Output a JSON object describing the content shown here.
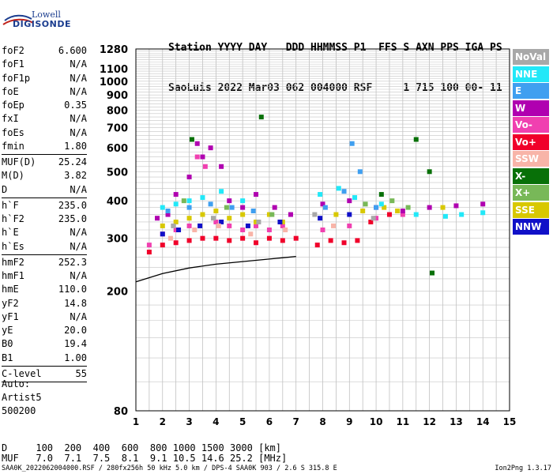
{
  "logo": {
    "line1": "Lowell",
    "line2": "DIGISONDE"
  },
  "header": {
    "line1": "Station YYYY DAY   DDD HHMMSS P1  FFS S AXN PPS IGA PS",
    "line2": "SaoLuis 2022 Mar03 062 004000 RSF     1 715 100 00- 11"
  },
  "parameters": [
    {
      "name": "foF2",
      "value": "6.600"
    },
    {
      "name": "foF1",
      "value": "N/A"
    },
    {
      "name": "foF1p",
      "value": "N/A"
    },
    {
      "name": "foE",
      "value": "N/A"
    },
    {
      "name": "foEp",
      "value": "0.35"
    },
    {
      "name": "fxI",
      "value": "N/A"
    },
    {
      "name": "foEs",
      "value": "N/A"
    },
    {
      "name": "fmin",
      "value": "1.80",
      "sep_after": true
    },
    {
      "name": "MUF(D)",
      "value": "25.24"
    },
    {
      "name": "M(D)",
      "value": "3.82"
    },
    {
      "name": "D",
      "value": "N/A",
      "sep_after": true
    },
    {
      "name": "h`F",
      "value": "235.0"
    },
    {
      "name": "h`F2",
      "value": "235.0"
    },
    {
      "name": "h`E",
      "value": "N/A"
    },
    {
      "name": "h`Es",
      "value": "N/A",
      "sep_after": true
    },
    {
      "name": "hmF2",
      "value": "252.3"
    },
    {
      "name": "hmF1",
      "value": "N/A"
    },
    {
      "name": "hmE",
      "value": "110.0"
    },
    {
      "name": "yF2",
      "value": "14.8"
    },
    {
      "name": "yF1",
      "value": "N/A"
    },
    {
      "name": "yE",
      "value": "20.0"
    },
    {
      "name": "B0",
      "value": "19.4"
    },
    {
      "name": "B1",
      "value": "1.00",
      "sep_after": true
    },
    {
      "name": "C-level",
      "value": "55",
      "sep_after": true
    }
  ],
  "notes": [
    "Auto:",
    "Artist5",
    "500200"
  ],
  "muf_table": {
    "d_row": "D     100  200  400  600  800 1000 1500 3000 [km]",
    "muf_row": "MUF   7.0  7.1  7.5  8.1  9.1 10.5 14.6 25.2 [MHz]"
  },
  "footer": {
    "left": "SAA0K_2022062004000.RSF / 280fx256h 50 kHz 5.0 km / DPS-4 SAA0K 903 / 2.6 S 315.8 E",
    "right": "Ion2Png 1.3.17"
  },
  "legend": [
    {
      "label": "NoVal",
      "color": "#a8a8a8"
    },
    {
      "label": "NNE",
      "color": "#22e8f8"
    },
    {
      "label": "E",
      "color": "#3f9ff0"
    },
    {
      "label": "W",
      "color": "#b000b0"
    },
    {
      "label": "Vo-",
      "color": "#f040b0"
    },
    {
      "label": "Vo+",
      "color": "#f0002a"
    },
    {
      "label": "SSW",
      "color": "#f8b4a8"
    },
    {
      "label": "X-",
      "color": "#087008"
    },
    {
      "label": "X+",
      "color": "#78b858"
    },
    {
      "label": "SSE",
      "color": "#d8c800"
    },
    {
      "label": "NNW",
      "color": "#1010c8"
    }
  ],
  "chart_data": {
    "type": "scatter",
    "title": "",
    "xlabel": "",
    "ylabel": "",
    "x_unit": "MHz",
    "y_unit": "km",
    "xlim": [
      1,
      15
    ],
    "ylim": [
      80,
      1280
    ],
    "y_scale": "log",
    "x_ticks": [
      1,
      2,
      3,
      4,
      5,
      6,
      7,
      8,
      9,
      10,
      11,
      12,
      13,
      14,
      15
    ],
    "y_ticks": [
      80,
      200,
      300,
      400,
      500,
      600,
      700,
      800,
      900,
      1000,
      1100,
      1280
    ],
    "grid": true,
    "series": [
      {
        "name": "Vo+",
        "color": "#f0002a",
        "points": [
          [
            1.5,
            270
          ],
          [
            2.0,
            285
          ],
          [
            2.5,
            290
          ],
          [
            3.0,
            295
          ],
          [
            3.5,
            300
          ],
          [
            4.0,
            300
          ],
          [
            4.5,
            295
          ],
          [
            5.0,
            300
          ],
          [
            5.5,
            290
          ],
          [
            6.0,
            300
          ],
          [
            6.5,
            295
          ],
          [
            7.0,
            300
          ],
          [
            7.8,
            285
          ],
          [
            8.3,
            295
          ],
          [
            8.8,
            290
          ],
          [
            9.3,
            295
          ],
          [
            9.8,
            340
          ],
          [
            10.5,
            360
          ]
        ]
      },
      {
        "name": "Vo-",
        "color": "#f040b0",
        "points": [
          [
            1.5,
            285
          ],
          [
            2.0,
            310
          ],
          [
            2.5,
            320
          ],
          [
            3.0,
            330
          ],
          [
            3.3,
            560
          ],
          [
            3.6,
            520
          ],
          [
            4.0,
            340
          ],
          [
            4.5,
            330
          ],
          [
            5.0,
            320
          ],
          [
            5.5,
            330
          ],
          [
            6.0,
            320
          ],
          [
            6.5,
            330
          ],
          [
            8.0,
            320
          ],
          [
            9.0,
            330
          ],
          [
            10.0,
            350
          ],
          [
            11.0,
            360
          ]
        ]
      },
      {
        "name": "W",
        "color": "#b000b0",
        "points": [
          [
            1.8,
            350
          ],
          [
            2.2,
            360
          ],
          [
            2.5,
            420
          ],
          [
            3.0,
            480
          ],
          [
            3.3,
            620
          ],
          [
            3.5,
            560
          ],
          [
            3.8,
            600
          ],
          [
            4.2,
            520
          ],
          [
            4.5,
            400
          ],
          [
            5.0,
            380
          ],
          [
            5.5,
            420
          ],
          [
            6.2,
            380
          ],
          [
            6.8,
            360
          ],
          [
            8.0,
            390
          ],
          [
            9.0,
            400
          ],
          [
            10.0,
            380
          ],
          [
            11.0,
            370
          ],
          [
            12.0,
            380
          ],
          [
            13.0,
            385
          ],
          [
            14.0,
            390
          ]
        ]
      },
      {
        "name": "SSE",
        "color": "#d8c800",
        "points": [
          [
            2.0,
            330
          ],
          [
            2.5,
            340
          ],
          [
            3.0,
            350
          ],
          [
            3.5,
            360
          ],
          [
            4.0,
            370
          ],
          [
            4.5,
            350
          ],
          [
            5.0,
            360
          ],
          [
            5.5,
            340
          ],
          [
            6.0,
            360
          ],
          [
            6.5,
            340
          ],
          [
            8.5,
            360
          ],
          [
            9.5,
            370
          ],
          [
            10.3,
            380
          ],
          [
            10.8,
            370
          ],
          [
            12.5,
            380
          ]
        ]
      },
      {
        "name": "NNE",
        "color": "#22e8f8",
        "points": [
          [
            2.0,
            380
          ],
          [
            2.5,
            390
          ],
          [
            3.0,
            400
          ],
          [
            3.5,
            410
          ],
          [
            4.2,
            430
          ],
          [
            5.0,
            400
          ],
          [
            7.9,
            420
          ],
          [
            8.6,
            440
          ],
          [
            9.2,
            410
          ],
          [
            10.2,
            390
          ],
          [
            11.5,
            360
          ],
          [
            12.6,
            355
          ],
          [
            13.2,
            360
          ],
          [
            14.0,
            365
          ]
        ]
      },
      {
        "name": "E",
        "color": "#3f9ff0",
        "points": [
          [
            2.2,
            370
          ],
          [
            3.0,
            380
          ],
          [
            3.8,
            390
          ],
          [
            4.6,
            380
          ],
          [
            5.4,
            370
          ],
          [
            8.1,
            380
          ],
          [
            8.8,
            430
          ],
          [
            9.1,
            620
          ],
          [
            9.4,
            500
          ],
          [
            10.0,
            380
          ]
        ]
      },
      {
        "name": "NNW",
        "color": "#1010c8",
        "points": [
          [
            2.0,
            310
          ],
          [
            2.6,
            320
          ],
          [
            3.4,
            330
          ],
          [
            4.2,
            340
          ],
          [
            5.2,
            330
          ],
          [
            6.4,
            340
          ],
          [
            7.9,
            350
          ],
          [
            9.0,
            360
          ]
        ]
      },
      {
        "name": "X-",
        "color": "#087008",
        "points": [
          [
            3.1,
            640
          ],
          [
            5.7,
            760
          ],
          [
            10.2,
            420
          ],
          [
            11.5,
            640
          ],
          [
            12.0,
            500
          ],
          [
            12.1,
            230
          ]
        ]
      },
      {
        "name": "X+",
        "color": "#78b858",
        "points": [
          [
            2.8,
            400
          ],
          [
            4.4,
            380
          ],
          [
            6.1,
            360
          ],
          [
            9.6,
            390
          ],
          [
            10.6,
            400
          ],
          [
            11.2,
            380
          ]
        ]
      },
      {
        "name": "SSW",
        "color": "#f8b4a8",
        "points": [
          [
            2.3,
            300
          ],
          [
            3.2,
            320
          ],
          [
            4.1,
            330
          ],
          [
            5.3,
            310
          ],
          [
            6.6,
            320
          ],
          [
            8.4,
            330
          ]
        ]
      },
      {
        "name": "NoVal",
        "color": "#a8a8a8",
        "points": [
          [
            2.4,
            330
          ],
          [
            3.9,
            350
          ],
          [
            5.6,
            340
          ],
          [
            7.7,
            360
          ],
          [
            9.9,
            350
          ]
        ]
      }
    ],
    "trace": {
      "points": [
        [
          1.0,
          215
        ],
        [
          2.0,
          229
        ],
        [
          3.0,
          239
        ],
        [
          4.0,
          246
        ],
        [
          5.0,
          251
        ],
        [
          6.0,
          256
        ],
        [
          7.0,
          261
        ]
      ]
    }
  }
}
